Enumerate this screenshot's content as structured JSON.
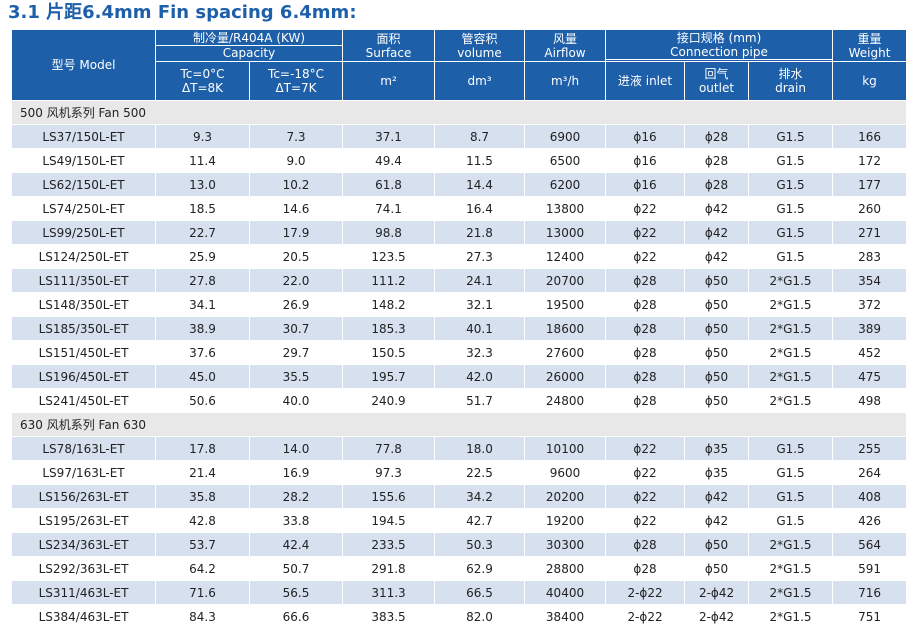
{
  "title": "3.1 片距6.4mm  Fin spacing 6.4mm:",
  "header": {
    "model": "型号 Model",
    "capacity_cn": "制冷量/R404A (KW)",
    "capacity_en": "Capacity",
    "tc0_line1": "Tc=0°C",
    "tc0_line2": "ΔT=8K",
    "tc18_line1": "Tc=-18°C",
    "tc18_line2": "ΔT=7K",
    "surface_cn": "面积",
    "surface_en": "Surface",
    "surface_unit": "m²",
    "volume_cn": "管容积",
    "volume_en": "volume",
    "volume_unit": "dm³",
    "airflow_cn": "风量",
    "airflow_en": "Airflow",
    "airflow_unit": "m³/h",
    "pipe_cn": "接口规格 (mm)",
    "pipe_en": "Connection pipe",
    "inlet": "进液 inlet",
    "outlet_cn": "回气",
    "outlet_en": "outlet",
    "drain_cn": "排水",
    "drain_en": "drain",
    "weight_cn": "重量",
    "weight_en": "Weight",
    "weight_unit": "kg"
  },
  "groups": [
    {
      "label": "500 风机系列   Fan 500",
      "rows": [
        [
          "LS37/150L-ET",
          "9.3",
          "7.3",
          "37.1",
          "8.7",
          "6900",
          "ϕ16",
          "ϕ28",
          "G1.5",
          "166"
        ],
        [
          "LS49/150L-ET",
          "11.4",
          "9.0",
          "49.4",
          "11.5",
          "6500",
          "ϕ16",
          "ϕ28",
          "G1.5",
          "172"
        ],
        [
          "LS62/150L-ET",
          "13.0",
          "10.2",
          "61.8",
          "14.4",
          "6200",
          "ϕ16",
          "ϕ28",
          "G1.5",
          "177"
        ],
        [
          "LS74/250L-ET",
          "18.5",
          "14.6",
          "74.1",
          "16.4",
          "13800",
          "ϕ22",
          "ϕ42",
          "G1.5",
          "260"
        ],
        [
          "LS99/250L-ET",
          "22.7",
          "17.9",
          "98.8",
          "21.8",
          "13000",
          "ϕ22",
          "ϕ42",
          "G1.5",
          "271"
        ],
        [
          "LS124/250L-ET",
          "25.9",
          "20.5",
          "123.5",
          "27.3",
          "12400",
          "ϕ22",
          "ϕ42",
          "G1.5",
          "283"
        ],
        [
          "LS111/350L-ET",
          "27.8",
          "22.0",
          "111.2",
          "24.1",
          "20700",
          "ϕ28",
          "ϕ50",
          "2*G1.5",
          "354"
        ],
        [
          "LS148/350L-ET",
          "34.1",
          "26.9",
          "148.2",
          "32.1",
          "19500",
          "ϕ28",
          "ϕ50",
          "2*G1.5",
          "372"
        ],
        [
          "LS185/350L-ET",
          "38.9",
          "30.7",
          "185.3",
          "40.1",
          "18600",
          "ϕ28",
          "ϕ50",
          "2*G1.5",
          "389"
        ],
        [
          "LS151/450L-ET",
          "37.6",
          "29.7",
          "150.5",
          "32.3",
          "27600",
          "ϕ28",
          "ϕ50",
          "2*G1.5",
          "452"
        ],
        [
          "LS196/450L-ET",
          "45.0",
          "35.5",
          "195.7",
          "42.0",
          "26000",
          "ϕ28",
          "ϕ50",
          "2*G1.5",
          "475"
        ],
        [
          "LS241/450L-ET",
          "50.6",
          "40.0",
          "240.9",
          "51.7",
          "24800",
          "ϕ28",
          "ϕ50",
          "2*G1.5",
          "498"
        ]
      ]
    },
    {
      "label": "630 风机系列   Fan 630",
      "rows": [
        [
          "LS78/163L-ET",
          "17.8",
          "14.0",
          "77.8",
          "18.0",
          "10100",
          "ϕ22",
          "ϕ35",
          "G1.5",
          "255"
        ],
        [
          "LS97/163L-ET",
          "21.4",
          "16.9",
          "97.3",
          "22.5",
          "9600",
          "ϕ22",
          "ϕ35",
          "G1.5",
          "264"
        ],
        [
          "LS156/263L-ET",
          "35.8",
          "28.2",
          "155.6",
          "34.2",
          "20200",
          "ϕ22",
          "ϕ42",
          "G1.5",
          "408"
        ],
        [
          "LS195/263L-ET",
          "42.8",
          "33.8",
          "194.5",
          "42.7",
          "19200",
          "ϕ22",
          "ϕ42",
          "G1.5",
          "426"
        ],
        [
          "LS234/363L-ET",
          "53.7",
          "42.4",
          "233.5",
          "50.3",
          "30300",
          "ϕ28",
          "ϕ50",
          "2*G1.5",
          "564"
        ],
        [
          "LS292/363L-ET",
          "64.2",
          "50.7",
          "291.8",
          "62.9",
          "28800",
          "ϕ28",
          "ϕ50",
          "2*G1.5",
          "591"
        ],
        [
          "LS311/463L-ET",
          "71.6",
          "56.5",
          "311.3",
          "66.5",
          "40400",
          "2-ϕ22",
          "2-ϕ42",
          "2*G1.5",
          "716"
        ],
        [
          "LS384/463L-ET",
          "84.3",
          "66.6",
          "383.5",
          "82.0",
          "38400",
          "2-ϕ22",
          "2-ϕ42",
          "2*G1.5",
          "751"
        ]
      ]
    }
  ]
}
